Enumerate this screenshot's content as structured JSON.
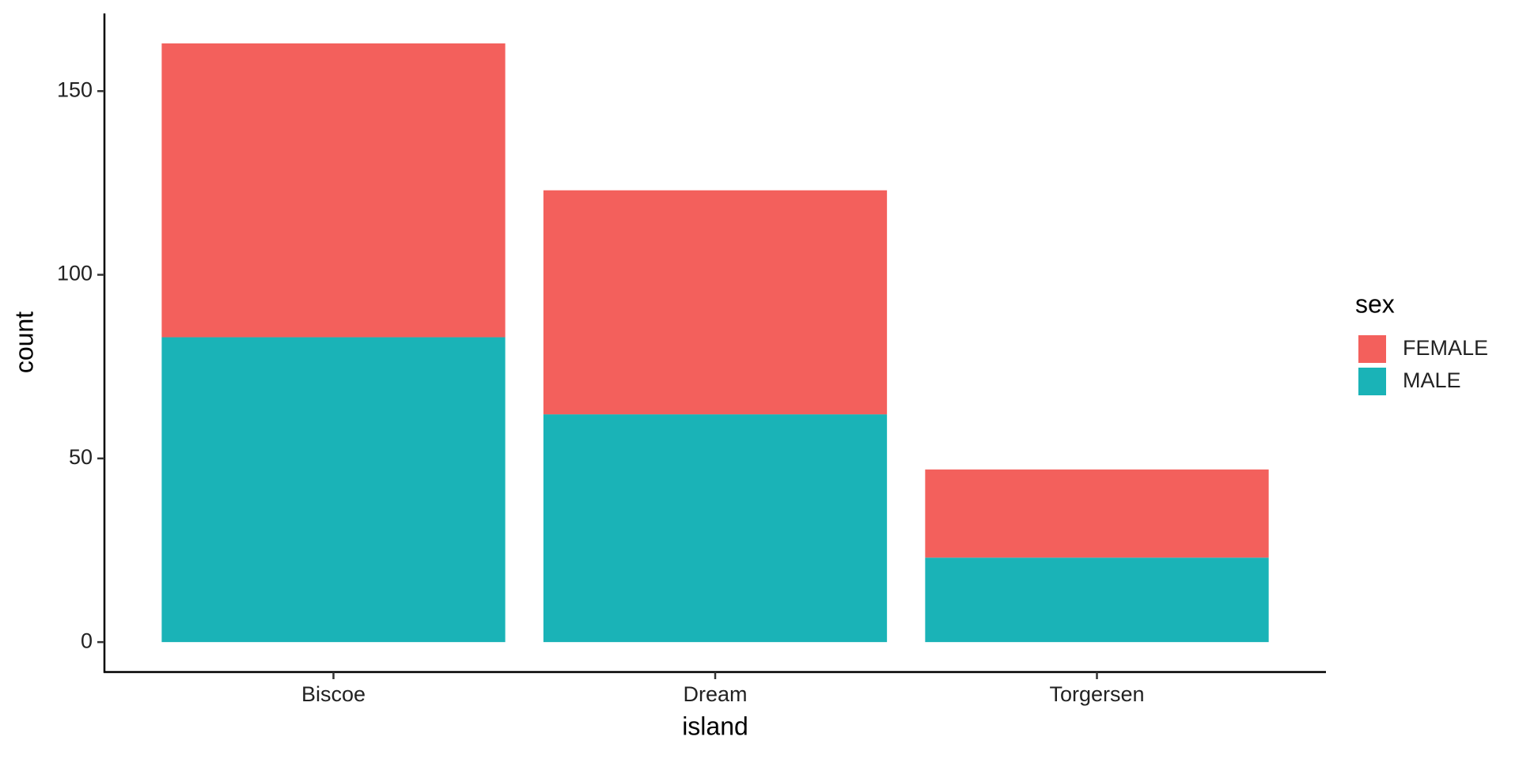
{
  "chart_data": {
    "type": "stacked_bar",
    "x_label": "island",
    "y_label": "count",
    "categories": [
      "Biscoe",
      "Dream",
      "Torgersen"
    ],
    "series": [
      {
        "name": "FEMALE",
        "color": "#f3605c",
        "values": [
          80,
          61,
          24
        ]
      },
      {
        "name": "MALE",
        "color": "#1ab3b7",
        "values": [
          83,
          62,
          23
        ]
      }
    ],
    "legend_title": "sex",
    "legend_position": "right",
    "ylim": [
      -8.15,
      171.15
    ],
    "yticks": [
      0,
      50,
      100,
      150
    ],
    "grid": false
  }
}
